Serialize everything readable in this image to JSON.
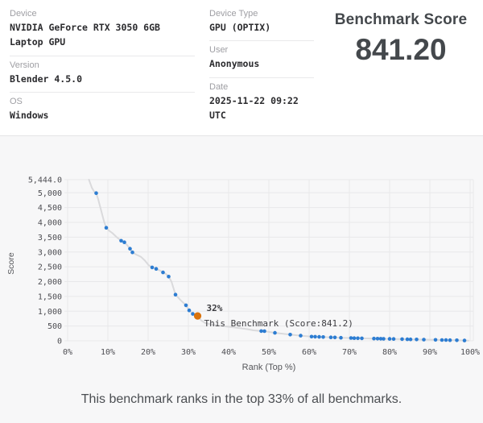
{
  "info": {
    "rows_left": [
      {
        "label": "Device",
        "value": "NVIDIA GeForce RTX 3050 6GB Laptop GPU"
      },
      {
        "label": "Version",
        "value": "Blender 4.5.0"
      },
      {
        "label": "OS",
        "value": "Windows"
      }
    ],
    "rows_mid": [
      {
        "label": "Device Type",
        "value": "GPU (OPTIX)"
      },
      {
        "label": "User",
        "value": "Anonymous"
      },
      {
        "label": "Date",
        "value": "2025-11-22 09:22 UTC"
      }
    ]
  },
  "score_panel": {
    "title": "Benchmark Score",
    "value": "841.20"
  },
  "footer": {
    "text": "This benchmark ranks in the top 33% of all benchmarks."
  },
  "colors": {
    "point_blue": "#2d7dd2",
    "highlight_orange": "#d9730d",
    "line_gray": "#dadadc",
    "grid": "#e8e8ea",
    "tick_text": "#4d4d52",
    "axis_text": "#55565a",
    "annotation_text": "#3c3c40"
  },
  "chart_data": {
    "type": "line",
    "title": "",
    "xlabel": "Rank (Top %)",
    "ylabel": "Score",
    "legend": false,
    "grid": true,
    "xlim": [
      0,
      100
    ],
    "ylim": [
      0,
      5444
    ],
    "x_ticks": [
      {
        "v": 0,
        "label": "0%"
      },
      {
        "v": 10,
        "label": "10%"
      },
      {
        "v": 20,
        "label": "20%"
      },
      {
        "v": 30,
        "label": "30%"
      },
      {
        "v": 40,
        "label": "40%"
      },
      {
        "v": 50,
        "label": "50%"
      },
      {
        "v": 60,
        "label": "60%"
      },
      {
        "v": 70,
        "label": "70%"
      },
      {
        "v": 80,
        "label": "80%"
      },
      {
        "v": 90,
        "label": "90%"
      },
      {
        "v": 100,
        "label": "100%"
      }
    ],
    "y_ticks": [
      {
        "v": 5444,
        "label": "5,444.0"
      },
      {
        "v": 5000,
        "label": "5,000"
      },
      {
        "v": 4500,
        "label": "4,500"
      },
      {
        "v": 4000,
        "label": "4,000"
      },
      {
        "v": 3500,
        "label": "3,500"
      },
      {
        "v": 3000,
        "label": "3,000"
      },
      {
        "v": 2500,
        "label": "2,500"
      },
      {
        "v": 2000,
        "label": "2,000"
      },
      {
        "v": 1500,
        "label": "1,500"
      },
      {
        "v": 1000,
        "label": "1,000"
      },
      {
        "v": 500,
        "label": "500"
      },
      {
        "v": 0,
        "label": "0"
      }
    ],
    "line": [
      [
        5.3,
        5444
      ],
      [
        5.6,
        5330
      ],
      [
        6.0,
        5180
      ],
      [
        6.5,
        5060
      ],
      [
        7.1,
        4990
      ],
      [
        7.6,
        4780
      ],
      [
        8.1,
        4520
      ],
      [
        8.6,
        4260
      ],
      [
        9.1,
        4010
      ],
      [
        9.6,
        3820
      ],
      [
        10.3,
        3720
      ],
      [
        11.2,
        3630
      ],
      [
        12.2,
        3500
      ],
      [
        13.3,
        3380
      ],
      [
        14.1,
        3330
      ],
      [
        14.8,
        3230
      ],
      [
        15.5,
        3110
      ],
      [
        16.1,
        2990
      ],
      [
        17.1,
        2910
      ],
      [
        18.2,
        2840
      ],
      [
        19.2,
        2710
      ],
      [
        20.1,
        2560
      ],
      [
        21,
        2480
      ],
      [
        22,
        2430
      ],
      [
        23,
        2370
      ],
      [
        23.7,
        2310
      ],
      [
        24.5,
        2250
      ],
      [
        25.1,
        2170
      ],
      [
        25.8,
        2000
      ],
      [
        26.8,
        1560
      ],
      [
        28.1,
        1370
      ],
      [
        29.4,
        1200
      ],
      [
        30.2,
        1030
      ],
      [
        31.1,
        910
      ],
      [
        32.3,
        841
      ],
      [
        33.2,
        690
      ],
      [
        34.2,
        600
      ],
      [
        35.6,
        555
      ],
      [
        37.6,
        515
      ],
      [
        40,
        475
      ],
      [
        42.4,
        435
      ],
      [
        44.6,
        395
      ],
      [
        46.2,
        355
      ],
      [
        48.1,
        330
      ],
      [
        48.9,
        326
      ],
      [
        51.5,
        270
      ],
      [
        55.3,
        210
      ],
      [
        57.9,
        175
      ],
      [
        60.6,
        142
      ],
      [
        62.5,
        133
      ],
      [
        63.5,
        128
      ],
      [
        65.4,
        118
      ],
      [
        67.9,
        104
      ],
      [
        70.4,
        94
      ],
      [
        72.1,
        88
      ],
      [
        73.1,
        84
      ],
      [
        76.1,
        75
      ],
      [
        78.5,
        69
      ],
      [
        81,
        63
      ],
      [
        83.1,
        56
      ],
      [
        85.2,
        50
      ],
      [
        86.7,
        46
      ],
      [
        88.5,
        41
      ],
      [
        91.4,
        33
      ],
      [
        93,
        28
      ],
      [
        95,
        23
      ],
      [
        96.7,
        18
      ],
      [
        98.6,
        12
      ],
      [
        99.6,
        9
      ]
    ],
    "points": [
      [
        7.1,
        4990
      ],
      [
        9.6,
        3820
      ],
      [
        13.3,
        3380
      ],
      [
        14.1,
        3330
      ],
      [
        15.5,
        3110
      ],
      [
        16.1,
        2990
      ],
      [
        21,
        2480
      ],
      [
        22,
        2430
      ],
      [
        23.7,
        2310
      ],
      [
        25.1,
        2170
      ],
      [
        26.8,
        1560
      ],
      [
        29.4,
        1200
      ],
      [
        30.2,
        1030
      ],
      [
        31.1,
        910
      ],
      [
        48.1,
        330
      ],
      [
        48.9,
        326
      ],
      [
        51.5,
        270
      ],
      [
        55.3,
        210
      ],
      [
        57.9,
        175
      ],
      [
        60.6,
        142
      ],
      [
        61.5,
        138
      ],
      [
        62.5,
        133
      ],
      [
        63.5,
        128
      ],
      [
        65.4,
        118
      ],
      [
        66.4,
        113
      ],
      [
        67.9,
        104
      ],
      [
        70.4,
        94
      ],
      [
        71.2,
        91
      ],
      [
        72.1,
        88
      ],
      [
        73.1,
        84
      ],
      [
        76.1,
        75
      ],
      [
        77,
        73
      ],
      [
        77.8,
        71
      ],
      [
        78.5,
        69
      ],
      [
        80,
        66
      ],
      [
        81,
        63
      ],
      [
        83.1,
        56
      ],
      [
        84.4,
        52
      ],
      [
        85.2,
        50
      ],
      [
        86.7,
        46
      ],
      [
        88.5,
        41
      ],
      [
        91.4,
        33
      ],
      [
        93,
        28
      ],
      [
        94,
        26
      ],
      [
        95,
        23
      ],
      [
        96.7,
        18
      ],
      [
        98.6,
        12
      ]
    ],
    "highlight": {
      "x": 32.3,
      "y": 841.2,
      "label_percent": "32%",
      "label_text": "This Benchmark (Score:841.2)"
    }
  }
}
